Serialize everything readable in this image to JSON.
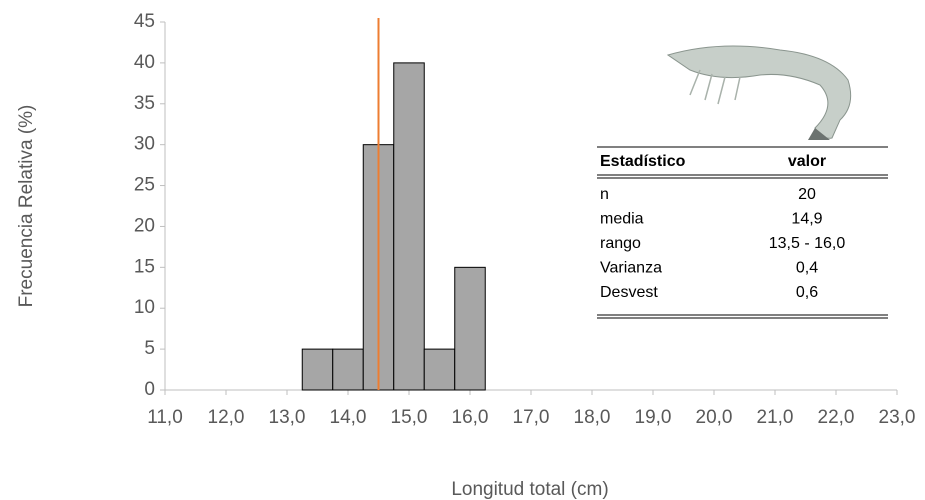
{
  "chart_data": {
    "type": "histogram",
    "bins": [
      13.25,
      13.75,
      14.25,
      14.75,
      15.25,
      15.75,
      16.25
    ],
    "values": [
      5,
      5,
      30,
      40,
      5,
      15
    ],
    "color": "#a6a6a6",
    "vline": 14.5,
    "vline_color": "#ed7d31",
    "x_label": "Longitud total (cm)",
    "y_label": "Frecuencia Relativa (%)",
    "xlim": [
      11,
      23
    ],
    "xticks": [
      {
        "value": 11,
        "label": "11,0"
      },
      {
        "value": 12,
        "label": "12,0"
      },
      {
        "value": 13,
        "label": "13,0"
      },
      {
        "value": 14,
        "label": "14,0"
      },
      {
        "value": 15,
        "label": "15,0"
      },
      {
        "value": 16,
        "label": "16,0"
      },
      {
        "value": 17,
        "label": "17,0"
      },
      {
        "value": 18,
        "label": "18,0"
      },
      {
        "value": 19,
        "label": "19,0"
      },
      {
        "value": 20,
        "label": "20,0"
      },
      {
        "value": 21,
        "label": "21,0"
      },
      {
        "value": 22,
        "label": "22,0"
      },
      {
        "value": 23,
        "label": "23,0"
      }
    ],
    "ylim": [
      0,
      45
    ],
    "yticks": [
      0,
      5,
      10,
      15,
      20,
      25,
      30,
      35,
      40,
      45
    ]
  },
  "table": {
    "header": [
      "Estadístico",
      "valor"
    ],
    "rows": [
      [
        "n",
        "20"
      ],
      [
        "media",
        "14,9"
      ],
      [
        "rango",
        "13,5 - 16,0"
      ],
      [
        "Varianza",
        "0,4"
      ],
      [
        "Desvest",
        "0,6"
      ]
    ]
  }
}
